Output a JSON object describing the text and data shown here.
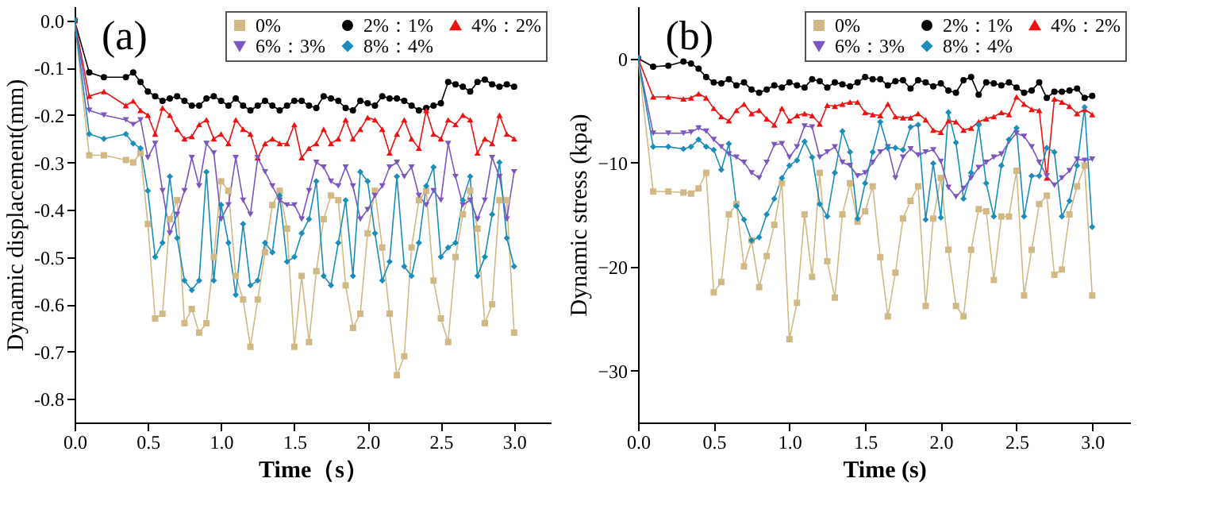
{
  "chart_data": [
    {
      "type": "line",
      "title": "(a)",
      "xlabel": "Time（s）",
      "ylabel": "Dynamic displacement(mm)",
      "legend": "top right",
      "grid": false,
      "xlim": [
        0,
        3.25
      ],
      "xticks": [
        {
          "value": 0,
          "label": "0.0"
        },
        {
          "value": 0.5,
          "label": "0.5"
        },
        {
          "value": 1,
          "label": "1.0"
        },
        {
          "value": 1.5,
          "label": "1.5"
        },
        {
          "value": 2,
          "label": "2.0"
        },
        {
          "value": 2.5,
          "label": "2.5"
        },
        {
          "value": 3,
          "label": "3.0"
        }
      ],
      "ylim": [
        -0.85,
        0.03
      ],
      "yticks": [
        {
          "value": 0,
          "label": "0.0"
        },
        {
          "value": -0.1,
          "label": "-0.1"
        },
        {
          "value": -0.2,
          "label": "-0.2"
        },
        {
          "value": -0.3,
          "label": "-0.3"
        },
        {
          "value": -0.4,
          "label": "-0.4"
        },
        {
          "value": -0.5,
          "label": "-0.5"
        },
        {
          "value": -0.6,
          "label": "-0.6"
        },
        {
          "value": -0.7,
          "label": "-0.7"
        },
        {
          "value": -0.8,
          "label": "-0.8"
        }
      ],
      "x": [
        0,
        0.1,
        0.2,
        0.35,
        0.4,
        0.45,
        0.5,
        0.55,
        0.6,
        0.65,
        0.7,
        0.75,
        0.8,
        0.85,
        0.9,
        0.95,
        1,
        1.05,
        1.1,
        1.15,
        1.2,
        1.25,
        1.3,
        1.35,
        1.4,
        1.45,
        1.5,
        1.55,
        1.6,
        1.65,
        1.7,
        1.75,
        1.8,
        1.85,
        1.9,
        1.95,
        2,
        2.05,
        2.1,
        2.15,
        2.2,
        2.25,
        2.3,
        2.35,
        2.4,
        2.45,
        2.5,
        2.55,
        2.6,
        2.65,
        2.7,
        2.75,
        2.8,
        2.85,
        2.9,
        2.95,
        3
      ],
      "series": [
        {
          "name": "0%",
          "color": "#d2b884",
          "marker": "square",
          "values": [
            0,
            -0.285,
            -0.285,
            -0.295,
            -0.3,
            -0.28,
            -0.43,
            -0.63,
            -0.62,
            -0.42,
            -0.38,
            -0.64,
            -0.61,
            -0.66,
            -0.64,
            -0.5,
            -0.34,
            -0.36,
            -0.54,
            -0.59,
            -0.69,
            -0.59,
            -0.49,
            -0.39,
            -0.36,
            -0.44,
            -0.69,
            -0.54,
            -0.68,
            -0.53,
            -0.42,
            -0.37,
            -0.38,
            -0.56,
            -0.65,
            -0.62,
            -0.45,
            -0.36,
            -0.48,
            -0.62,
            -0.75,
            -0.71,
            -0.48,
            -0.38,
            -0.36,
            -0.55,
            -0.63,
            -0.68,
            -0.5,
            -0.41,
            -0.36,
            -0.44,
            -0.64,
            -0.6,
            -0.38,
            -0.38,
            -0.66
          ]
        },
        {
          "name": "2%：1%",
          "color": "#000000",
          "marker": "circle",
          "values": [
            0,
            -0.11,
            -0.12,
            -0.12,
            -0.11,
            -0.13,
            -0.15,
            -0.16,
            -0.17,
            -0.165,
            -0.16,
            -0.17,
            -0.18,
            -0.18,
            -0.165,
            -0.16,
            -0.17,
            -0.18,
            -0.165,
            -0.18,
            -0.19,
            -0.18,
            -0.17,
            -0.18,
            -0.19,
            -0.18,
            -0.17,
            -0.17,
            -0.18,
            -0.185,
            -0.16,
            -0.165,
            -0.17,
            -0.185,
            -0.19,
            -0.17,
            -0.175,
            -0.18,
            -0.16,
            -0.165,
            -0.165,
            -0.17,
            -0.18,
            -0.19,
            -0.185,
            -0.18,
            -0.175,
            -0.13,
            -0.135,
            -0.14,
            -0.15,
            -0.13,
            -0.125,
            -0.135,
            -0.14,
            -0.135,
            -0.14
          ]
        },
        {
          "name": "4%：2%",
          "color": "#ee1111",
          "marker": "triangle",
          "values": [
            0,
            -0.16,
            -0.15,
            -0.18,
            -0.17,
            -0.19,
            -0.2,
            -0.24,
            -0.185,
            -0.2,
            -0.23,
            -0.25,
            -0.245,
            -0.22,
            -0.21,
            -0.25,
            -0.24,
            -0.26,
            -0.21,
            -0.23,
            -0.24,
            -0.29,
            -0.26,
            -0.25,
            -0.26,
            -0.26,
            -0.22,
            -0.29,
            -0.27,
            -0.26,
            -0.23,
            -0.26,
            -0.25,
            -0.21,
            -0.25,
            -0.23,
            -0.205,
            -0.21,
            -0.23,
            -0.28,
            -0.24,
            -0.21,
            -0.25,
            -0.27,
            -0.19,
            -0.24,
            -0.25,
            -0.21,
            -0.22,
            -0.2,
            -0.21,
            -0.28,
            -0.25,
            -0.26,
            -0.2,
            -0.24,
            -0.25
          ]
        },
        {
          "name": "6%：3%",
          "color": "#7b55c0",
          "marker": "triangle-down",
          "values": [
            0,
            -0.19,
            -0.2,
            -0.21,
            -0.22,
            -0.21,
            -0.29,
            -0.26,
            -0.36,
            -0.45,
            -0.41,
            -0.36,
            -0.29,
            -0.35,
            -0.26,
            -0.28,
            -0.42,
            -0.39,
            -0.29,
            -0.38,
            -0.41,
            -0.29,
            -0.32,
            -0.35,
            -0.38,
            -0.39,
            -0.39,
            -0.42,
            -0.36,
            -0.3,
            -0.31,
            -0.34,
            -0.35,
            -0.31,
            -0.35,
            -0.42,
            -0.4,
            -0.37,
            -0.35,
            -0.31,
            -0.3,
            -0.33,
            -0.31,
            -0.37,
            -0.39,
            -0.36,
            -0.38,
            -0.26,
            -0.33,
            -0.39,
            -0.38,
            -0.42,
            -0.38,
            -0.29,
            -0.33,
            -0.42,
            -0.32
          ]
        },
        {
          "name": "8%：4%",
          "color": "#1a8db8",
          "marker": "diamond",
          "values": [
            0,
            -0.24,
            -0.25,
            -0.24,
            -0.26,
            -0.27,
            -0.36,
            -0.5,
            -0.47,
            -0.33,
            -0.46,
            -0.55,
            -0.57,
            -0.55,
            -0.32,
            -0.55,
            -0.39,
            -0.47,
            -0.58,
            -0.43,
            -0.56,
            -0.55,
            -0.47,
            -0.49,
            -0.37,
            -0.51,
            -0.5,
            -0.45,
            -0.42,
            -0.34,
            -0.54,
            -0.56,
            -0.47,
            -0.38,
            -0.54,
            -0.32,
            -0.34,
            -0.45,
            -0.55,
            -0.51,
            -0.33,
            -0.52,
            -0.54,
            -0.47,
            -0.35,
            -0.31,
            -0.5,
            -0.48,
            -0.47,
            -0.38,
            -0.33,
            -0.54,
            -0.5,
            -0.41,
            -0.3,
            -0.46,
            -0.52
          ]
        }
      ]
    },
    {
      "type": "line",
      "title": "(b)",
      "xlabel": "Time (s)",
      "ylabel": "Dynamic stress (kpa)",
      "legend": "top right",
      "grid": false,
      "xlim": [
        0,
        3.25
      ],
      "xticks": [
        {
          "value": 0,
          "label": "0.0"
        },
        {
          "value": 0.5,
          "label": "0.5"
        },
        {
          "value": 1,
          "label": "1.0"
        },
        {
          "value": 1.5,
          "label": "1.5"
        },
        {
          "value": 2,
          "label": "2.0"
        },
        {
          "value": 2.5,
          "label": "2.5"
        },
        {
          "value": 3,
          "label": "3.0"
        }
      ],
      "ylim": [
        -35,
        5
      ],
      "yticks": [
        {
          "value": 0,
          "label": "0"
        },
        {
          "value": -10,
          "label": "−10"
        },
        {
          "value": -20,
          "label": "−20"
        },
        {
          "value": -30,
          "label": "−30"
        }
      ],
      "x": [
        0,
        0.1,
        0.2,
        0.3,
        0.35,
        0.4,
        0.45,
        0.5,
        0.55,
        0.6,
        0.65,
        0.7,
        0.75,
        0.8,
        0.85,
        0.9,
        0.95,
        1,
        1.05,
        1.1,
        1.15,
        1.2,
        1.25,
        1.3,
        1.35,
        1.4,
        1.45,
        1.5,
        1.55,
        1.6,
        1.65,
        1.7,
        1.75,
        1.8,
        1.85,
        1.9,
        1.95,
        2,
        2.05,
        2.1,
        2.15,
        2.2,
        2.25,
        2.3,
        2.35,
        2.4,
        2.45,
        2.5,
        2.55,
        2.6,
        2.65,
        2.7,
        2.75,
        2.8,
        2.85,
        2.9,
        2.95,
        3
      ],
      "series": [
        {
          "name": "0%",
          "color": "#d2b884",
          "marker": "square",
          "values": [
            0,
            -12.8,
            -12.8,
            -12.9,
            -13,
            -12.5,
            -11,
            -22.5,
            -21.5,
            -15,
            -14,
            -20,
            -17.5,
            -22,
            -19,
            -16,
            -12,
            -27,
            -23.5,
            -15,
            -21,
            -11,
            -19.5,
            -23,
            -15,
            -12,
            -15.7,
            -14.7,
            -12.3,
            -19.1,
            -24.8,
            -20.6,
            -15.4,
            -13.7,
            -12.3,
            -23.8,
            -15.4,
            -11.5,
            -18.4,
            -23.8,
            -24.8,
            -18.4,
            -14.5,
            -14.7,
            -21.3,
            -15.2,
            -15.2,
            -10.8,
            -22.8,
            -18.4,
            -14,
            -13.2,
            -20.8,
            -20.3,
            -15,
            -12.3,
            -10.3,
            -22.8
          ]
        },
        {
          "name": "2%：1%",
          "color": "#000000",
          "marker": "circle",
          "values": [
            0,
            -0.8,
            -0.7,
            -0.3,
            -0.5,
            -1,
            -1.8,
            -2.3,
            -2.4,
            -2,
            -2.6,
            -2.3,
            -3,
            -3.3,
            -3,
            -2.6,
            -2.8,
            -2.3,
            -2.6,
            -2.8,
            -2,
            -2.2,
            -2.8,
            -2.3,
            -2.5,
            -2.7,
            -2.3,
            -1.8,
            -2,
            -2,
            -2.6,
            -2.2,
            -2.1,
            -2.9,
            -2.1,
            -2.3,
            -2.7,
            -2.4,
            -3.1,
            -3.3,
            -2.1,
            -1.8,
            -3.5,
            -2.3,
            -2.4,
            -2.6,
            -2.3,
            -2.8,
            -3.3,
            -3.1,
            -2.3,
            -3.8,
            -3.2,
            -3.2,
            -3.1,
            -2.9,
            -3.8,
            -3.6
          ]
        },
        {
          "name": "4%：2%",
          "color": "#ee1111",
          "marker": "triangle",
          "values": [
            0,
            -3.7,
            -3.7,
            -3.9,
            -3.8,
            -3.4,
            -3.8,
            -4.8,
            -5.6,
            -6,
            -5,
            -4.4,
            -5.3,
            -5,
            -5.8,
            -6.4,
            -4.8,
            -6,
            -5.5,
            -5.3,
            -5.5,
            -6.3,
            -4.5,
            -4.6,
            -4.4,
            -4.2,
            -4.2,
            -5.2,
            -5.4,
            -5.5,
            -4.4,
            -5.6,
            -5.7,
            -5.7,
            -5.3,
            -5.9,
            -6.9,
            -7.1,
            -6,
            -6.1,
            -6.9,
            -6.7,
            -6.1,
            -5.8,
            -5.6,
            -5.2,
            -5.4,
            -3.7,
            -4.4,
            -4.9,
            -5,
            -11.5,
            -3.9,
            -4.2,
            -4.6,
            -5.3,
            -4.9,
            -5.4
          ]
        },
        {
          "name": "6%：3%",
          "color": "#7b55c0",
          "marker": "triangle-down",
          "values": [
            0,
            -7.2,
            -7.2,
            -7.2,
            -7.1,
            -6.7,
            -7,
            -7.8,
            -8.5,
            -9.2,
            -9.5,
            -10,
            -11,
            -11.5,
            -10,
            -8.3,
            -8.2,
            -9.5,
            -8.5,
            -6.5,
            -6.6,
            -9.5,
            -9,
            -8.5,
            -10,
            -10.3,
            -11.3,
            -11,
            -10,
            -9,
            -8.5,
            -11.5,
            -9.5,
            -8.7,
            -9.3,
            -9,
            -8.8,
            -9.9,
            -12.4,
            -13.3,
            -12.5,
            -11.5,
            -10.5,
            -10,
            -9.5,
            -9.2,
            -8,
            -7.2,
            -7.5,
            -8.5,
            -10,
            -11.3,
            -12.2,
            -11.5,
            -10.8,
            -9.7,
            -9.8,
            -9.7
          ]
        },
        {
          "name": "8%：4%",
          "color": "#1a8db8",
          "marker": "diamond",
          "values": [
            0,
            -8.5,
            -8.5,
            -8.7,
            -8.5,
            -7.8,
            -8.5,
            -8.8,
            -10.7,
            -8.2,
            -14.2,
            -15.5,
            -17.5,
            -17.2,
            -15,
            -13.5,
            -11.5,
            -10.3,
            -9.8,
            -8,
            -9.5,
            -14,
            -15.2,
            -11,
            -7,
            -9,
            -15.4,
            -12,
            -9,
            -6.1,
            -8.6,
            -8.6,
            -8.8,
            -6.6,
            -6.4,
            -15.5,
            -10.1,
            -15.3,
            -5.2,
            -8.1,
            -13.5,
            -11,
            -6.4,
            -12,
            -15.2,
            -10.3,
            -7.8,
            -6.7,
            -15.2,
            -11.3,
            -11.3,
            -8.6,
            -9,
            -15.2,
            -13.7,
            -10.3,
            -4.7,
            -16.2
          ]
        }
      ]
    }
  ]
}
